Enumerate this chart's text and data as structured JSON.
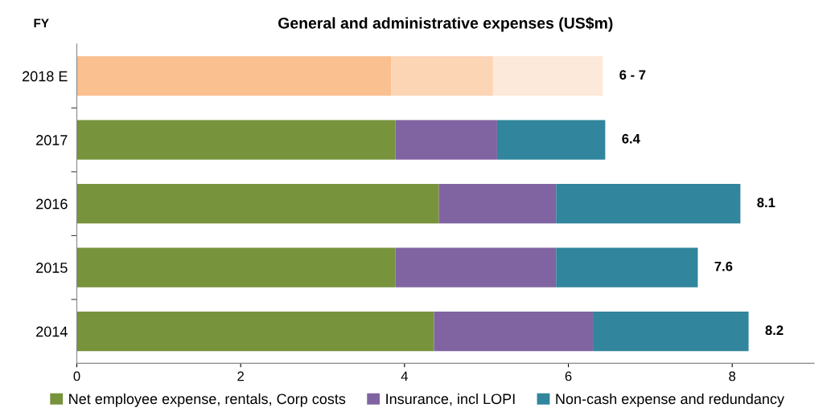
{
  "chart_data": {
    "type": "bar",
    "orientation": "horizontal",
    "stacked": true,
    "title": "General and administrative expenses (US$m)",
    "ylabel": "FY",
    "categories": [
      "2018 E",
      "2017",
      "2016",
      "2015",
      "2014"
    ],
    "series": [
      {
        "name": "Net employee expense, rentals, Corp costs",
        "color": "#77933c",
        "colors": [
          "#fac090",
          "#77933c",
          "#77933c",
          "#77933c",
          "#77933c"
        ],
        "values": [
          3.84,
          3.89,
          4.42,
          3.89,
          4.36
        ]
      },
      {
        "name": "Insurance, incl LOPI",
        "color": "#8064a2",
        "colors": [
          "#fcd5b5",
          "#8064a2",
          "#8064a2",
          "#8064a2",
          "#8064a2"
        ],
        "values": [
          1.24,
          1.24,
          1.43,
          1.96,
          1.94
        ]
      },
      {
        "name": "Non-cash expense and redundancy",
        "color": "#31859c",
        "colors": [
          "#fde9d9",
          "#31859c",
          "#31859c",
          "#31859c",
          "#31859c"
        ],
        "values": [
          1.34,
          1.32,
          2.25,
          1.73,
          1.9
        ]
      }
    ],
    "totals": [
      "6 - 7",
      "6.4",
      "8.1",
      "7.6",
      "8.2"
    ],
    "xlim": [
      0,
      9
    ],
    "xticks": [
      0,
      2,
      4,
      6,
      8
    ],
    "grid": false,
    "legend": "bottom"
  }
}
